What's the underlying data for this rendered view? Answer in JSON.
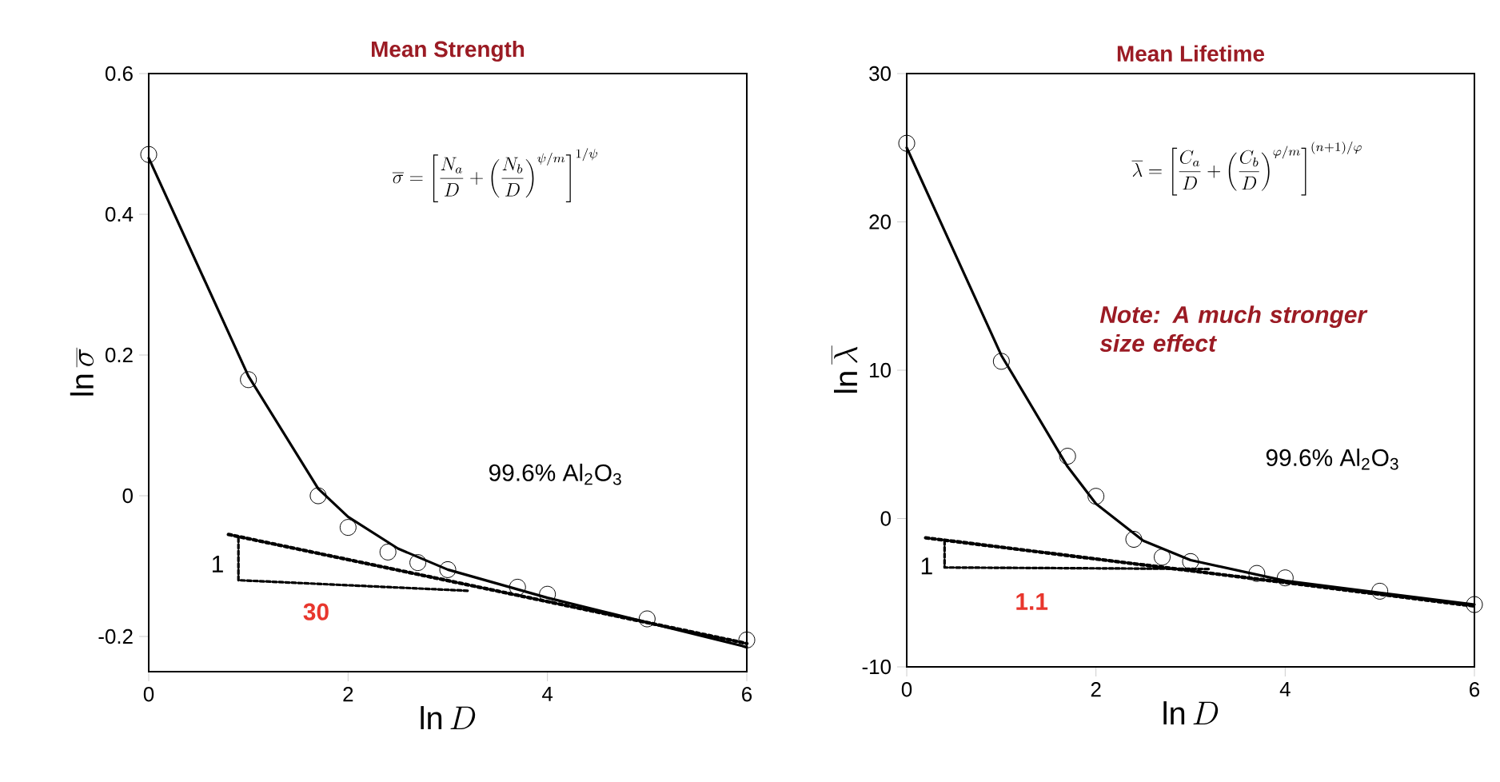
{
  "chart_data": [
    {
      "type": "line",
      "title": "Mean Strength",
      "xlabel": "\\ln D",
      "ylabel": "\\ln\\overline{\\sigma}",
      "xlim": [
        0,
        6
      ],
      "xticks": [
        0,
        2,
        4,
        6
      ],
      "ylim": [
        -0.25,
        0.6
      ],
      "yticks": [
        -0.2,
        0,
        0.2,
        0.4,
        0.6
      ],
      "series": [
        {
          "type": "scatter",
          "marker": "circle",
          "color": "#000000",
          "x": [
            0,
            1,
            1.7,
            2,
            2.4,
            2.7,
            3,
            3.7,
            4,
            5,
            6
          ],
          "values": [
            0.485,
            0.165,
            0.0,
            -0.045,
            -0.08,
            -0.095,
            -0.105,
            -0.13,
            -0.14,
            -0.175,
            -0.205
          ]
        },
        {
          "color": "#000000",
          "line_style": "solid",
          "x": [
            0,
            1,
            1.7,
            2,
            2.5,
            3,
            4,
            5,
            6
          ],
          "values": [
            0.48,
            0.17,
            0.01,
            -0.03,
            -0.075,
            -0.105,
            -0.145,
            -0.18,
            -0.215
          ]
        },
        {
          "color": "#000000",
          "line_style": "dotted",
          "x": [
            0.8,
            6
          ],
          "values": [
            -0.055,
            -0.21
          ]
        },
        {
          "color": "#000000",
          "line_style": "dashed",
          "x": [
            0.9,
            0.9,
            3.2
          ],
          "values": [
            -0.06,
            -0.12,
            -0.135
          ]
        }
      ],
      "annotations": [
        "\\overline{\\sigma} = \\left[\\frac{N_a}{D}+\\left(\\frac{N_b}{D}\\right)^{\\psi/m}\\right]^{1/\\psi}",
        "99.6% Al$_{2}$O$_{3}$",
        "1",
        "30"
      ]
    },
    {
      "type": "line",
      "title": "Mean Lifetime",
      "xlabel": "\\ln D",
      "ylabel": "\\ln\\overline{\\lambda}",
      "xlim": [
        0,
        6
      ],
      "xticks": [
        0,
        2,
        4,
        6
      ],
      "ylim": [
        -10,
        30
      ],
      "yticks": [
        -10,
        0,
        10,
        20,
        30
      ],
      "series": [
        {
          "type": "scatter",
          "marker": "circle",
          "color": "#000000",
          "x": [
            0,
            1,
            1.7,
            2,
            2.4,
            2.7,
            3,
            3.7,
            4,
            5,
            6
          ],
          "values": [
            25.3,
            10.6,
            4.2,
            1.5,
            -1.4,
            -2.6,
            -2.9,
            -3.7,
            -4.0,
            -4.9,
            -5.8
          ]
        },
        {
          "color": "#000000",
          "line_style": "solid",
          "x": [
            0,
            1,
            1.7,
            2,
            2.5,
            3,
            4,
            5,
            6
          ],
          "values": [
            25,
            11,
            3.5,
            1,
            -1.5,
            -2.8,
            -4.2,
            -5,
            -5.8
          ]
        },
        {
          "color": "#000000",
          "line_style": "dotted",
          "x": [
            0.2,
            6
          ],
          "values": [
            -1.3,
            -5.9
          ]
        },
        {
          "color": "#000000",
          "line_style": "dashed",
          "x": [
            0.4,
            0.4,
            3.2
          ],
          "values": [
            -1.5,
            -3.3,
            -3.4
          ]
        }
      ],
      "annotations": [
        "\\overline{\\lambda} = \\left[\\frac{C_a}{D}+\\left(\\frac{C_b}{D}\\right)^{\\varphi/m}\\right]^{(n+1)/\\varphi}",
        "Note: A much stronger size effect",
        "99.6% Al$_{2}$O$_{3}$",
        "1",
        "1.1"
      ]
    }
  ]
}
